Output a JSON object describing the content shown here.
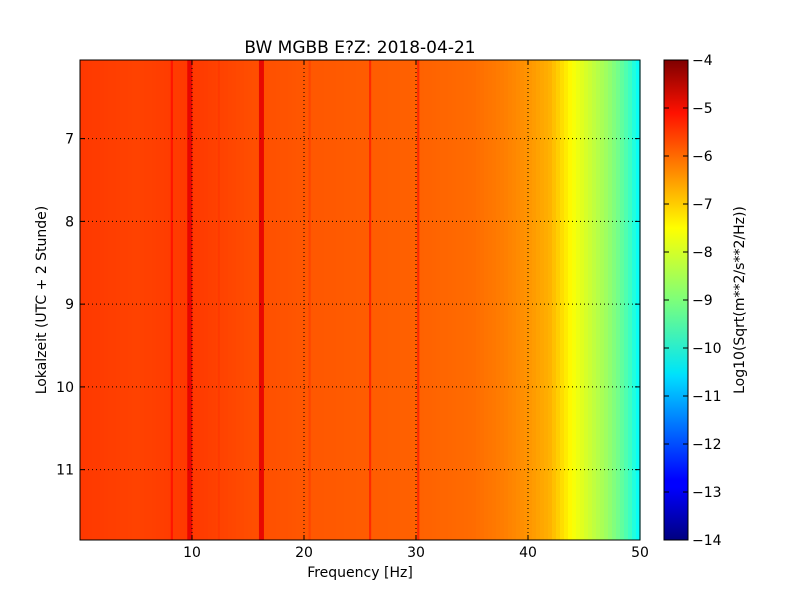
{
  "chart_data": {
    "type": "heatmap",
    "title": "BW MGBB E?Z: 2018-04-21",
    "xlabel": "Frequency [Hz]",
    "ylabel": "Lokalzeit (UTC + 2 Stunde)",
    "xlim": [
      0,
      50
    ],
    "ylim": [
      11.85,
      6.05
    ],
    "y_inverted": true,
    "x_ticks": [
      10,
      20,
      30,
      40,
      50
    ],
    "x_tick_labels": [
      "10",
      "20",
      "30",
      "40",
      "50"
    ],
    "y_ticks": [
      7,
      8,
      9,
      10,
      11
    ],
    "y_tick_labels": [
      "7",
      "8",
      "9",
      "10",
      "11"
    ],
    "grid": true,
    "colormap": "jet",
    "colorbar": {
      "label": "Log10(Sqrt(m**2/s**2/Hz))",
      "range": [
        -14,
        -4
      ],
      "ticks": [
        -4,
        -5,
        -6,
        -7,
        -8,
        -9,
        -10,
        -11,
        -12,
        -13,
        -14
      ],
      "tick_labels": [
        "−4",
        "−5",
        "−6",
        "−7",
        "−8",
        "−9",
        "−10",
        "−11",
        "−12",
        "−13",
        "−14"
      ]
    },
    "spectral_profile": {
      "frequency_hz": [
        0,
        5,
        10,
        15,
        20,
        25,
        30,
        35,
        38,
        40,
        42,
        43,
        44,
        45,
        46,
        47,
        48,
        49,
        50
      ],
      "log10_amplitude": [
        -5.8,
        -5.9,
        -5.8,
        -6.0,
        -6.1,
        -6.15,
        -6.2,
        -6.3,
        -6.5,
        -6.7,
        -7.0,
        -7.4,
        -7.8,
        -8.1,
        -8.4,
        -8.7,
        -9.1,
        -9.6,
        -10.3
      ]
    },
    "peaks": [
      {
        "frequency_hz": 9.8,
        "log10_amplitude": -5.0
      },
      {
        "frequency_hz": 16.2,
        "log10_amplitude": -5.0
      },
      {
        "frequency_hz": 8.2,
        "log10_amplitude": -5.4
      },
      {
        "frequency_hz": 25.9,
        "log10_amplitude": -5.6
      },
      {
        "frequency_hz": 30.2,
        "log10_amplitude": -5.6
      },
      {
        "frequency_hz": 12.4,
        "log10_amplitude": -5.8
      },
      {
        "frequency_hz": 20.5,
        "log10_amplitude": -5.9
      }
    ]
  }
}
